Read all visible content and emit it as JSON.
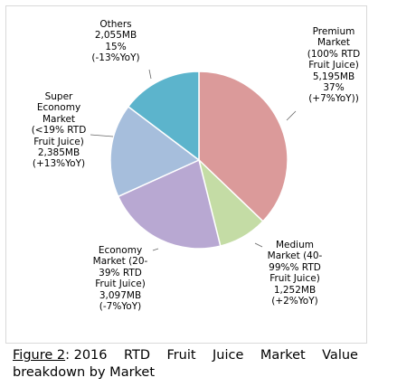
{
  "chart_data": {
    "type": "pie",
    "slices": [
      {
        "lines": [
          "Premium",
          "Market",
          "(100% RTD",
          "Fruit Juice)",
          "5,195MB",
          "37%",
          "(+7%YoY))"
        ],
        "value": 5195,
        "color": "#db9a9a"
      },
      {
        "lines": [
          "Medium",
          "Market (40-",
          "99%% RTD",
          "Fruit Juice)",
          "1,252MB",
          "(+2%YoY)"
        ],
        "value": 1252,
        "color": "#c4dca5"
      },
      {
        "lines": [
          "Economy",
          "Market (20-",
          "39% RTD",
          "Fruit Juice)",
          "3,097MB",
          "(-7%YoY)"
        ],
        "value": 3097,
        "color": "#b8a8d2"
      },
      {
        "lines": [
          "Super",
          "Economy",
          "Market",
          "(<19% RTD",
          "Fruit Juice)",
          "2,385MB",
          "(+13%YoY)"
        ],
        "value": 2385,
        "color": "#a6bedc"
      },
      {
        "lines": [
          "Others",
          "2,055MB",
          "15%",
          "(-13%YoY)"
        ],
        "value": 2055,
        "color": "#5cb4cc"
      }
    ]
  },
  "caption": {
    "figure": "Figure 2",
    "row1_words": [
      ": 2016",
      "RTD",
      "Fruit",
      "Juice",
      "Market",
      "Value"
    ],
    "row2": "breakdown by Market"
  }
}
